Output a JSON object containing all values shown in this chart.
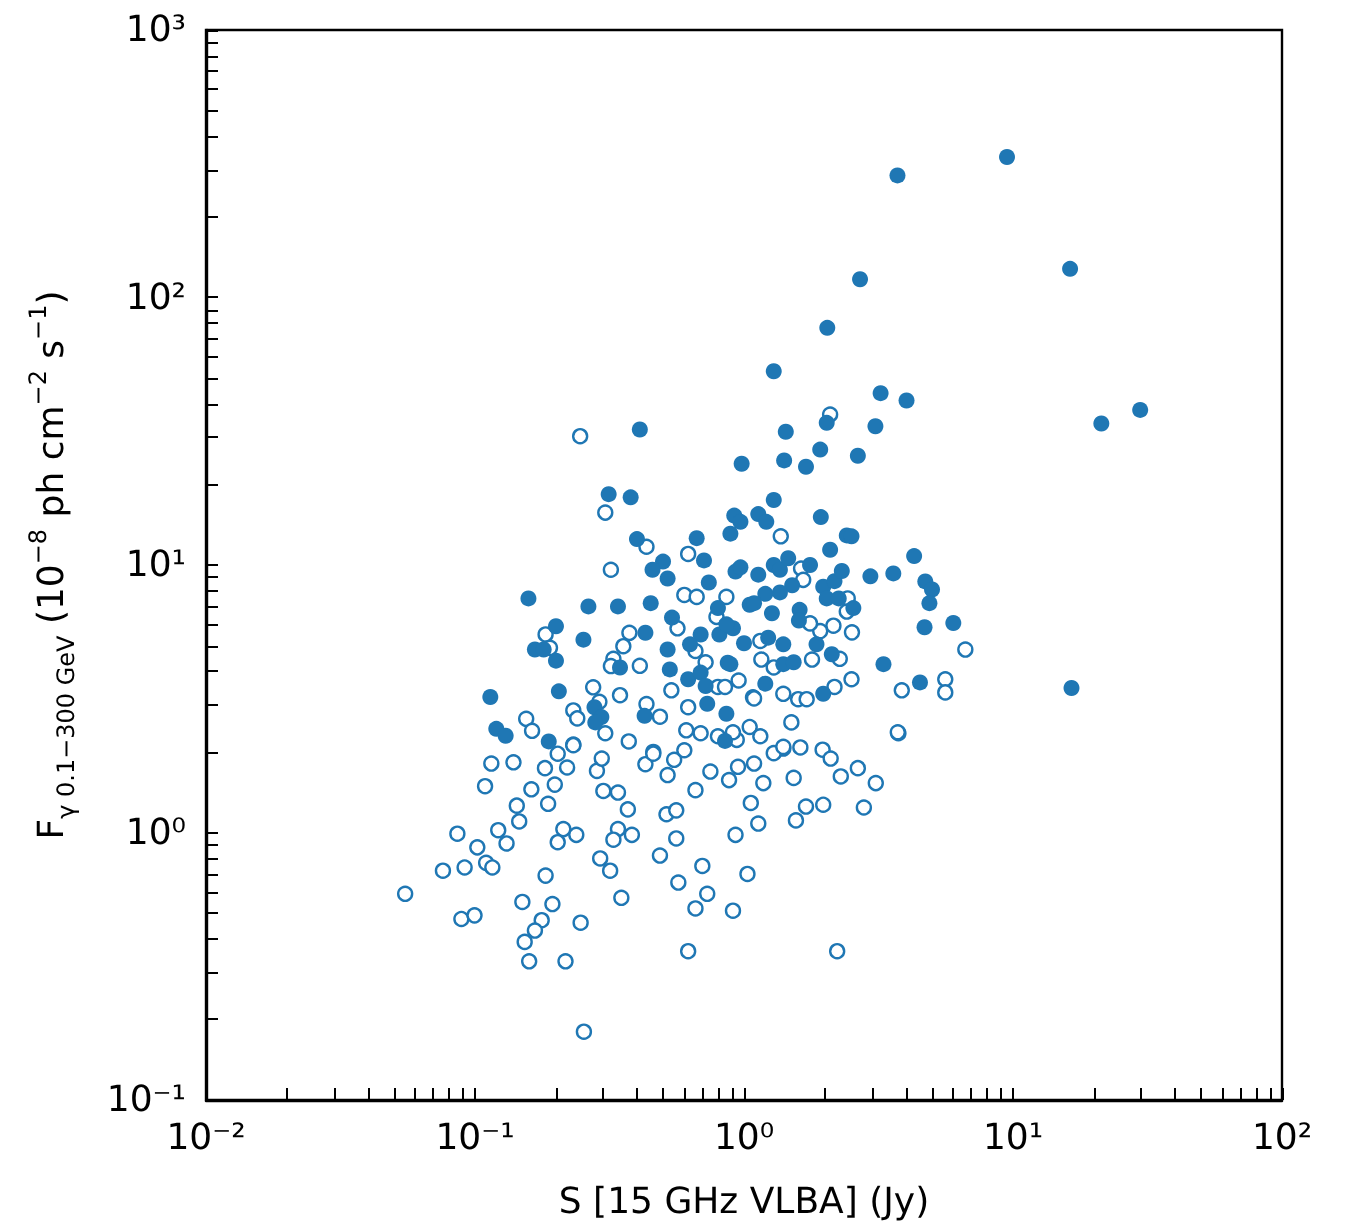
{
  "chart_data": {
    "type": "scatter",
    "xlabel": "S [15 GHz VLBA] (Jy)",
    "ylabel": "F$_{γ 0.1−300 GeV}$ (10$^{−8}$ ph cm$^{−2}$ s$^{−1}$)",
    "log": "xy",
    "marker": "circle",
    "xlim": [
      0.01,
      100
    ],
    "ylim": [
      0.1,
      1000
    ],
    "xticks": [
      {
        "value": 0.01,
        "label": "10⁻²"
      },
      {
        "value": 0.02,
        "label": null
      },
      {
        "value": 0.03,
        "label": null
      },
      {
        "value": 0.04,
        "label": null
      },
      {
        "value": 0.05,
        "label": null
      },
      {
        "value": 0.06,
        "label": null
      },
      {
        "value": 0.07,
        "label": null
      },
      {
        "value": 0.08,
        "label": null
      },
      {
        "value": 0.09,
        "label": null
      },
      {
        "value": 0.1,
        "label": "10⁻¹"
      },
      {
        "value": 0.2,
        "label": null
      },
      {
        "value": 0.3,
        "label": null
      },
      {
        "value": 0.4,
        "label": null
      },
      {
        "value": 0.5,
        "label": null
      },
      {
        "value": 0.6,
        "label": null
      },
      {
        "value": 0.7,
        "label": null
      },
      {
        "value": 0.8,
        "label": null
      },
      {
        "value": 0.9,
        "label": null
      },
      {
        "value": 1,
        "label": "10⁰"
      },
      {
        "value": 2,
        "label": null
      },
      {
        "value": 3,
        "label": null
      },
      {
        "value": 4,
        "label": null
      },
      {
        "value": 5,
        "label": null
      },
      {
        "value": 6,
        "label": null
      },
      {
        "value": 7,
        "label": null
      },
      {
        "value": 8,
        "label": null
      },
      {
        "value": 9,
        "label": null
      },
      {
        "value": 10,
        "label": "10¹"
      },
      {
        "value": 20,
        "label": null
      },
      {
        "value": 30,
        "label": null
      },
      {
        "value": 40,
        "label": null
      },
      {
        "value": 50,
        "label": null
      },
      {
        "value": 60,
        "label": null
      },
      {
        "value": 70,
        "label": null
      },
      {
        "value": 80,
        "label": null
      },
      {
        "value": 90,
        "label": null
      },
      {
        "value": 100,
        "label": "10²"
      }
    ],
    "yticks": [
      {
        "value": 0.1,
        "label": "10⁻¹"
      },
      {
        "value": 0.2,
        "label": null
      },
      {
        "value": 0.3,
        "label": null
      },
      {
        "value": 0.4,
        "label": null
      },
      {
        "value": 0.5,
        "label": null
      },
      {
        "value": 0.6,
        "label": null
      },
      {
        "value": 0.7,
        "label": null
      },
      {
        "value": 0.8,
        "label": null
      },
      {
        "value": 0.9,
        "label": null
      },
      {
        "value": 1,
        "label": "10⁰"
      },
      {
        "value": 2,
        "label": null
      },
      {
        "value": 3,
        "label": null
      },
      {
        "value": 4,
        "label": null
      },
      {
        "value": 5,
        "label": null
      },
      {
        "value": 6,
        "label": null
      },
      {
        "value": 7,
        "label": null
      },
      {
        "value": 8,
        "label": null
      },
      {
        "value": 9,
        "label": null
      },
      {
        "value": 10,
        "label": "10¹"
      },
      {
        "value": 20,
        "label": null
      },
      {
        "value": 30,
        "label": null
      },
      {
        "value": 40,
        "label": null
      },
      {
        "value": 50,
        "label": null
      },
      {
        "value": 60,
        "label": null
      },
      {
        "value": 70,
        "label": null
      },
      {
        "value": 80,
        "label": null
      },
      {
        "value": 90,
        "label": null
      },
      {
        "value": 100,
        "label": "10²"
      },
      {
        "value": 200,
        "label": null
      },
      {
        "value": 300,
        "label": null
      },
      {
        "value": 400,
        "label": null
      },
      {
        "value": 500,
        "label": null
      },
      {
        "value": 600,
        "label": null
      },
      {
        "value": 700,
        "label": null
      },
      {
        "value": 800,
        "label": null
      },
      {
        "value": 900,
        "label": null
      },
      {
        "value": 1000,
        "label": "10³"
      }
    ],
    "series": [
      {
        "color": "#1f77b4",
        "x": [
          9.5,
          3.72,
          16.3,
          2.7,
          2.04,
          1.29,
          3.22,
          4.02,
          21.3,
          29.7,
          3.08,
          2.03,
          1.43,
          16.5,
          0.98,
          1.41,
          1.7,
          1.92,
          2.65,
          1.29,
          0.92,
          0.97,
          0.89,
          1.13,
          1.21,
          1.93,
          2.41,
          2.51,
          2.09,
          4.29,
          3.59,
          2.95,
          4.72,
          5.0,
          4.89,
          0.93,
          0.97,
          1.13,
          1.29,
          1.36,
          1.46,
          1.76,
          1.51,
          1.36,
          1.2,
          1.05,
          1.09,
          1.97,
          2.17,
          2.31,
          2.03,
          2.25,
          2.55,
          1.61,
          1.27,
          1.6,
          0.81,
          0.91,
          0.86,
          6.0,
          4.69,
          1.0,
          1.23,
          1.4,
          1.86,
          3.3,
          4.51,
          2.12,
          0.89,
          1.4,
          1.53,
          1.2,
          1.97,
          0.86,
          0.85,
          0.41,
          0.314,
          0.379,
          0.4,
          0.667,
          0.5,
          0.71,
          0.457,
          0.52,
          0.74,
          0.158,
          0.264,
          0.34,
          0.45,
          0.8,
          0.54,
          0.2,
          0.43,
          0.69,
          0.253,
          0.167,
          0.18,
          0.2,
          0.52,
          0.63,
          0.346,
          0.53,
          0.62,
          0.69,
          0.72,
          0.87,
          0.73,
          0.114,
          0.205,
          0.278,
          0.295,
          0.28,
          0.427,
          0.12,
          0.13,
          0.188
        ],
        "values": [
          335,
          286,
          128,
          117,
          77,
          53,
          43.9,
          41.2,
          33.8,
          38,
          33.0,
          34,
          31.5,
          3.47,
          23.9,
          24.6,
          23.3,
          27.0,
          25.6,
          17.5,
          15.3,
          14.5,
          13.1,
          15.5,
          14.5,
          15.1,
          12.9,
          12.8,
          11.4,
          10.8,
          9.3,
          9.07,
          8.68,
          8.1,
          7.2,
          9.45,
          9.8,
          9.2,
          10.0,
          9.6,
          10.6,
          10.0,
          8.4,
          7.9,
          7.8,
          7.1,
          7.2,
          8.3,
          8.7,
          9.5,
          7.5,
          7.5,
          6.9,
          6.8,
          6.6,
          6.2,
          5.5,
          5.8,
          6.0,
          6.07,
          5.85,
          5.1,
          5.35,
          5.05,
          5.05,
          4.26,
          3.64,
          4.64,
          4.26,
          4.26,
          4.33,
          3.6,
          3.3,
          2.78,
          2.2,
          32.1,
          18.4,
          17.9,
          12.5,
          12.6,
          10.3,
          10.4,
          9.6,
          8.9,
          8.6,
          7.5,
          7.0,
          7.0,
          7.2,
          6.9,
          6.36,
          5.9,
          5.58,
          5.5,
          5.26,
          4.83,
          4.83,
          4.39,
          4.83,
          5.05,
          4.14,
          4.07,
          3.74,
          3.96,
          3.53,
          4.31,
          3.03,
          3.21,
          3.37,
          2.94,
          2.7,
          2.58,
          2.73,
          2.44,
          2.3,
          2.19
        ]
      },
      {
        "color": "#1f77b4",
        "x": [
          0.246,
          0.305,
          0.434,
          0.62,
          0.32,
          0.6,
          0.667,
          0.86,
          0.79,
          0.566,
          0.183,
          0.19,
          0.375,
          0.356,
          0.327,
          0.32,
          0.41,
          0.72,
          0.537,
          0.66,
          0.955,
          0.275,
          0.346,
          0.434,
          0.232,
          0.24,
          0.29,
          0.155,
          0.163,
          0.487,
          0.62,
          0.8,
          0.232,
          0.305,
          0.373,
          0.46,
          0.61,
          0.69,
          0.8,
          0.94,
          1.08,
          0.055,
          0.076,
          0.0915,
          0.089,
          0.0996,
          0.102,
          0.086,
          0.11,
          0.116,
          0.122,
          0.131,
          0.146,
          0.143,
          0.162,
          0.109,
          0.115,
          0.139,
          0.187,
          0.182,
          0.198,
          0.22,
          0.203,
          0.232,
          0.213,
          0.238,
          0.203,
          0.183,
          0.15,
          0.194,
          0.177,
          0.167,
          0.153,
          0.159,
          0.217,
          0.247,
          0.254,
          0.284,
          0.296,
          0.3,
          0.34,
          0.37,
          0.43,
          0.46,
          0.52,
          0.55,
          0.6,
          0.75,
          0.66,
          0.515,
          0.56,
          0.383,
          0.34,
          0.327,
          0.292,
          0.318,
          0.35,
          0.487,
          0.56,
          0.57,
          0.7,
          0.73,
          0.66,
          0.91,
          0.62,
          0.93,
          1.03,
          1.06,
          0.88,
          0.95,
          1.13,
          1.53,
          1.7,
          1.56,
          1.97,
          2.29,
          2.65,
          3.09,
          2.79,
          2.22,
          1.4,
          1.62,
          1.96,
          2.1,
          1.29,
          1.09,
          1.18,
          3.75,
          2.09,
          1.37,
          1.63,
          1.66,
          2.43,
          2.41,
          2.52,
          6.65,
          5.6,
          5.6,
          3.86,
          2.51,
          3.73,
          2.27,
          2.15,
          1.92,
          1.76,
          1.79,
          2.17,
          1.59,
          1.71,
          1.4,
          1.09,
          1.16,
          1.29,
          1.15,
          0.85,
          1.5,
          1.05,
          1.15,
          0.91,
          1.4
        ],
        "values": [
          30.3,
          15.7,
          11.7,
          11.0,
          9.6,
          7.73,
          7.6,
          7.6,
          6.4,
          5.8,
          5.5,
          4.9,
          5.58,
          4.97,
          4.46,
          4.19,
          4.2,
          4.33,
          3.4,
          4.77,
          3.7,
          3.49,
          3.26,
          3.02,
          2.86,
          2.67,
          3.08,
          2.66,
          2.4,
          2.71,
          2.94,
          3.5,
          2.13,
          2.35,
          2.19,
          2.0,
          2.41,
          2.35,
          2.29,
          2.22,
          3.2,
          0.59,
          0.72,
          0.74,
          0.475,
          0.49,
          0.88,
          0.99,
          0.77,
          0.74,
          1.02,
          0.91,
          1.1,
          1.26,
          1.45,
          1.49,
          1.81,
          1.83,
          1.28,
          1.74,
          1.51,
          1.75,
          1.97,
          2.12,
          1.03,
          0.98,
          0.92,
          0.69,
          0.55,
          0.54,
          0.47,
          0.43,
          0.39,
          0.33,
          0.33,
          0.46,
          0.18,
          1.7,
          1.89,
          1.43,
          1.41,
          1.22,
          1.8,
          1.97,
          1.64,
          1.87,
          2.03,
          1.69,
          1.44,
          1.17,
          1.21,
          0.98,
          1.03,
          0.94,
          0.8,
          0.72,
          0.57,
          0.82,
          0.95,
          0.65,
          0.75,
          0.59,
          0.52,
          0.51,
          0.36,
          0.98,
          0.7,
          1.29,
          1.57,
          1.76,
          1.08,
          1.6,
          1.25,
          1.11,
          1.27,
          1.62,
          1.74,
          1.53,
          1.24,
          0.36,
          2.06,
          2.08,
          2.04,
          1.89,
          1.98,
          1.81,
          1.53,
          2.35,
          36.5,
          12.8,
          9.7,
          8.8,
          7.5,
          6.7,
          5.6,
          4.83,
          3.74,
          3.34,
          3.4,
          3.74,
          2.37,
          4.46,
          5.93,
          5.66,
          6.05,
          4.43,
          3.5,
          3.15,
          3.15,
          3.3,
          3.17,
          4.43,
          4.14,
          5.2,
          3.5,
          2.58,
          2.48,
          2.29,
          2.37,
          2.09
        ]
      }
    ]
  }
}
